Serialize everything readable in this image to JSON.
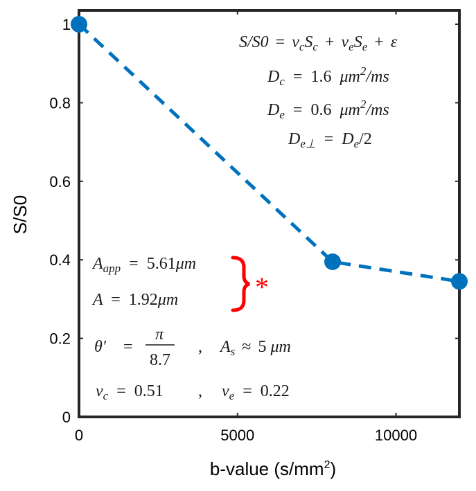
{
  "chart_data": {
    "type": "line",
    "title": "",
    "xlabel": "b-value (s/mm",
    "xlabel_sup": "2",
    "xlabel_close": ")",
    "ylabel": "S/S0",
    "xlim": [
      0,
      12000
    ],
    "ylim": [
      0,
      1
    ],
    "xticks": [
      0,
      5000,
      10000
    ],
    "xtick_labels": [
      "0",
      "5000",
      "10000"
    ],
    "yticks": [
      0,
      0.2,
      0.4,
      0.6,
      0.8,
      1
    ],
    "ytick_labels": [
      "0",
      "0.2",
      "0.4",
      "0.6",
      "0.8",
      "1"
    ],
    "series": [
      {
        "name": "S/S0",
        "style": "dashed-with-markers",
        "color": "#0072BD",
        "x": [
          0,
          8000,
          12000
        ],
        "y": [
          1.0,
          0.395,
          0.345
        ]
      }
    ]
  },
  "annotations": {
    "model_lhs": "S/S0",
    "model_eq": "=",
    "v": "v",
    "sub_c": "c",
    "sub_e": "e",
    "S": "S",
    "plus": "+",
    "epsilon": "ε",
    "D": "D",
    "eq": "=",
    "Dc_val": "1.6",
    "De_val": "0.6",
    "um": "μm",
    "sq": "2",
    "per_ms": "/ms",
    "sub_eperp": "e⊥",
    "half": "/2",
    "A": "A",
    "sub_app": "app",
    "Aapp_val": "5.61",
    "A_val": "1.92",
    "theta": "θ′",
    "pi": "π",
    "denom": "8.7",
    "comma": ",",
    "sub_s": "s",
    "approx": "≈",
    "As_val": "5",
    "vc_val": "0.51",
    "ve_val": "0.22",
    "star": "*"
  },
  "colors": {
    "series": "#0072BD",
    "bracket": "#ff0000",
    "axes": "#262626"
  }
}
